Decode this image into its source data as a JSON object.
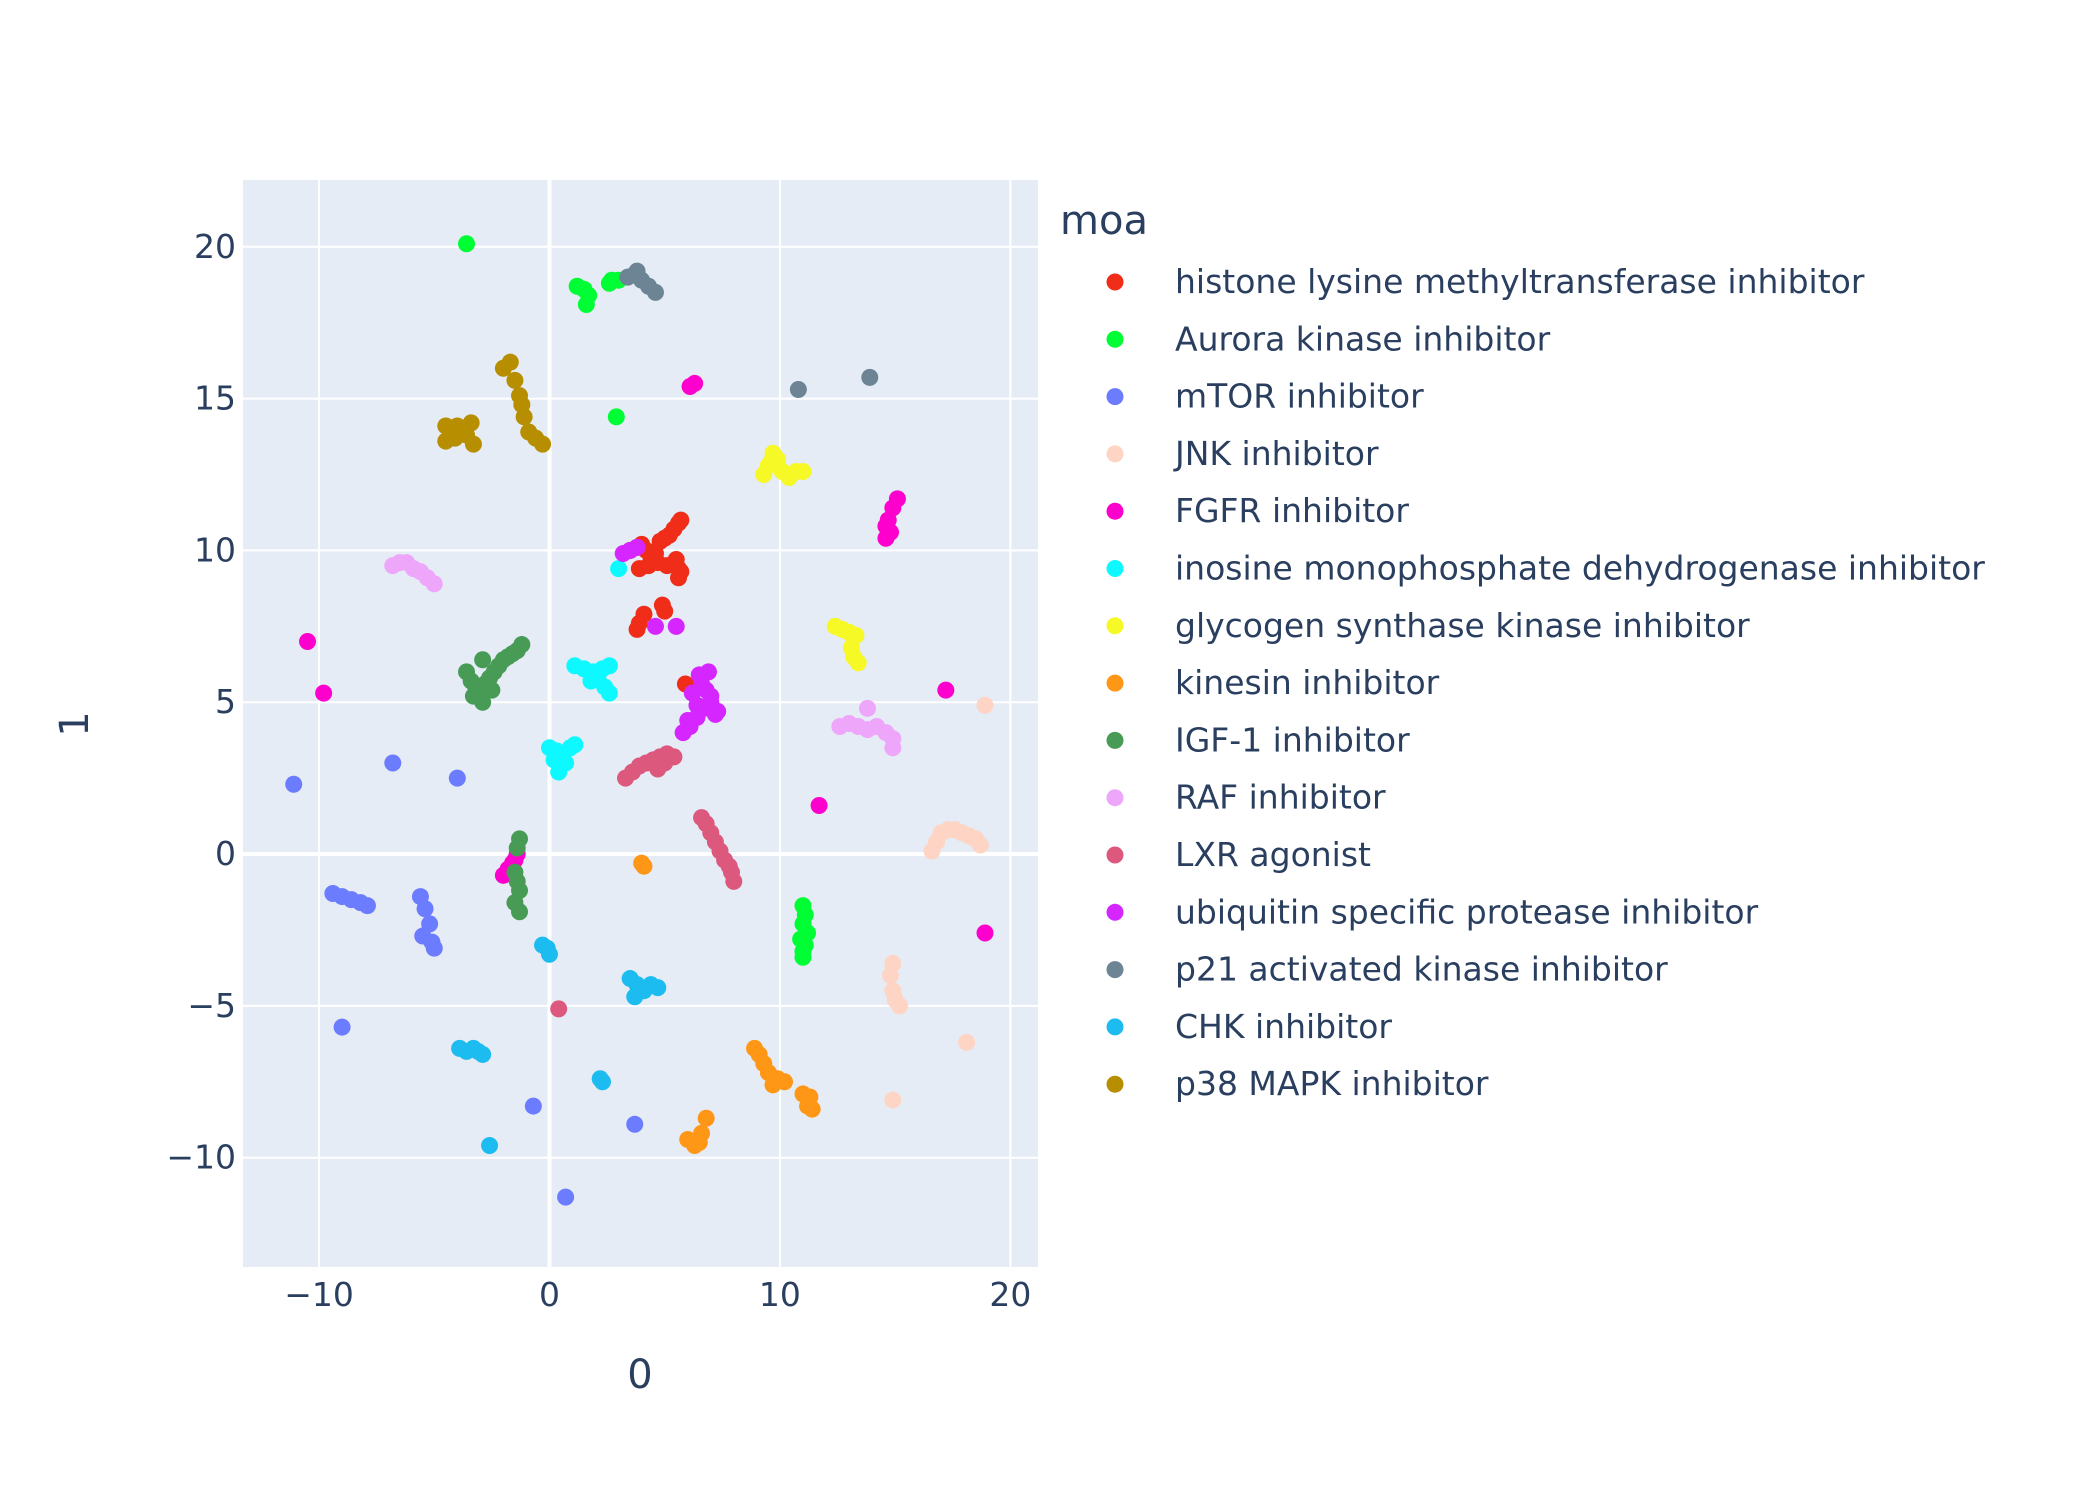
{
  "chart_data": {
    "type": "scatter",
    "title": "",
    "xlabel": "0",
    "ylabel": "1",
    "xlim": [
      -13.3,
      21.2
    ],
    "ylim": [
      -13.6,
      22.2
    ],
    "xticks": [
      -10,
      0,
      10,
      20
    ],
    "yticks": [
      -10,
      -5,
      0,
      5,
      10,
      15,
      20
    ],
    "xtick_labels": [
      "−10",
      "0",
      "10",
      "20"
    ],
    "ytick_labels": [
      "−10",
      "−5",
      "0",
      "5",
      "10",
      "15",
      "20"
    ],
    "grid": true,
    "plot_background": "#e5ecf6",
    "legend": {
      "title": "moa",
      "placement": "right"
    },
    "series": [
      {
        "name": "histone lysine methyltransferase inhibitor",
        "color": "#ef2d18",
        "x": [
          3.5,
          3.8,
          4.0,
          4.2,
          4.4,
          4.6,
          4.8,
          5.0,
          5.2,
          5.4,
          5.6,
          5.7,
          3.9,
          4.3,
          4.7,
          5.1,
          5.5,
          5.6,
          5.7,
          5.6,
          3.9,
          4.1,
          3.8,
          4.9,
          5.0,
          5.9
        ],
        "y": [
          10.0,
          10.1,
          10.2,
          10.0,
          9.8,
          9.9,
          10.3,
          10.4,
          10.5,
          10.7,
          10.9,
          11.0,
          9.4,
          9.5,
          9.6,
          9.5,
          9.7,
          9.4,
          9.3,
          9.1,
          7.6,
          7.9,
          7.4,
          8.2,
          8.0,
          5.6
        ]
      },
      {
        "name": "Aurora kinase inhibitor",
        "color": "#00fe35",
        "x": [
          -3.6,
          1.2,
          1.5,
          1.7,
          1.6,
          2.6,
          3.0,
          2.7,
          2.9,
          11.0,
          11.1,
          11.0,
          11.2,
          10.9,
          11.1,
          11.0,
          11.0
        ],
        "y": [
          20.1,
          18.7,
          18.6,
          18.4,
          18.1,
          18.8,
          18.9,
          18.9,
          14.4,
          -1.7,
          -2.0,
          -2.3,
          -2.6,
          -2.8,
          -3.0,
          -3.2,
          -3.4
        ]
      },
      {
        "name": "mTOR inhibitor",
        "color": "#6c7cfe",
        "x": [
          -11.1,
          -6.8,
          -4.0,
          -9.4,
          -9.0,
          -8.6,
          -8.2,
          -7.9,
          -5.6,
          -5.4,
          -5.2,
          -5.5,
          -5.1,
          -5.0,
          -9.0,
          -0.7,
          3.7,
          0.7
        ],
        "y": [
          2.3,
          3.0,
          2.5,
          -1.3,
          -1.4,
          -1.5,
          -1.6,
          -1.7,
          -1.4,
          -1.8,
          -2.3,
          -2.7,
          -2.9,
          -3.1,
          -5.7,
          -8.3,
          -8.9,
          -11.3
        ]
      },
      {
        "name": "JNK inhibitor",
        "color": "#fed4c4",
        "x": [
          18.9,
          16.6,
          16.8,
          17.0,
          17.3,
          17.6,
          17.9,
          18.2,
          18.5,
          18.7,
          14.9,
          14.8,
          14.9,
          15.0,
          15.2,
          18.1,
          14.9
        ],
        "y": [
          4.9,
          0.1,
          0.4,
          0.7,
          0.8,
          0.8,
          0.7,
          0.6,
          0.5,
          0.3,
          -3.6,
          -4.0,
          -4.5,
          -4.8,
          -5.0,
          -6.2,
          -8.1
        ]
      },
      {
        "name": "FGFR inhibitor",
        "color": "#fe00ce",
        "x": [
          6.1,
          6.3,
          14.6,
          14.7,
          14.9,
          15.1,
          14.8,
          14.6,
          -10.5,
          -9.8,
          17.2,
          11.7,
          18.9,
          -1.4,
          -1.6,
          -1.8,
          -2.0,
          -1.5
        ],
        "y": [
          15.4,
          15.5,
          10.8,
          11.0,
          11.4,
          11.7,
          10.6,
          10.4,
          7.0,
          5.3,
          5.4,
          1.6,
          -2.6,
          0.0,
          -0.3,
          -0.5,
          -0.7,
          -0.2
        ]
      },
      {
        "name": "inosine monophosphate dehydrogenase inhibitor",
        "color": "#0df9ff",
        "x": [
          3.0,
          1.1,
          1.5,
          1.9,
          2.3,
          2.6,
          2.1,
          2.4,
          2.6,
          1.8,
          0.0,
          0.3,
          0.6,
          0.9,
          1.1,
          0.4,
          0.2,
          0.7
        ],
        "y": [
          9.4,
          6.2,
          6.1,
          6.0,
          6.1,
          6.2,
          5.8,
          5.5,
          5.3,
          5.7,
          3.5,
          3.4,
          3.3,
          3.5,
          3.6,
          2.7,
          3.1,
          3.0
        ]
      },
      {
        "name": "glycogen synthase kinase inhibitor",
        "color": "#f6f926",
        "x": [
          9.3,
          9.5,
          9.7,
          9.9,
          10.1,
          10.4,
          10.7,
          11.0,
          9.6,
          12.4,
          12.7,
          13.0,
          13.3,
          13.1,
          13.2,
          13.4
        ],
        "y": [
          12.5,
          12.8,
          13.2,
          13.0,
          12.6,
          12.4,
          12.6,
          12.6,
          12.9,
          7.5,
          7.4,
          7.3,
          7.2,
          6.8,
          6.5,
          6.3
        ]
      },
      {
        "name": "kinesin inhibitor",
        "color": "#fe9616",
        "x": [
          4.0,
          4.1,
          8.9,
          9.1,
          9.3,
          9.5,
          9.7,
          9.9,
          10.2,
          11.0,
          11.3,
          11.2,
          11.4,
          6.0,
          6.3,
          6.6,
          6.8,
          6.5
        ],
        "y": [
          -0.3,
          -0.4,
          -6.4,
          -6.6,
          -6.9,
          -7.2,
          -7.6,
          -7.4,
          -7.5,
          -7.9,
          -8.0,
          -8.3,
          -8.4,
          -9.4,
          -9.6,
          -9.2,
          -8.7,
          -9.5
        ]
      },
      {
        "name": "IGF-1 inhibitor",
        "color": "#479b55",
        "x": [
          -3.6,
          -3.4,
          -3.2,
          -3.0,
          -2.8,
          -2.6,
          -2.4,
          -2.2,
          -2.0,
          -1.8,
          -1.6,
          -1.4,
          -1.2,
          -3.3,
          -2.9,
          -2.5,
          -2.9,
          -1.3,
          -1.4,
          -1.5,
          -1.4,
          -1.3,
          -1.5,
          -1.3
        ],
        "y": [
          6.0,
          5.7,
          5.5,
          5.3,
          5.6,
          5.8,
          6.0,
          6.2,
          6.4,
          6.5,
          6.6,
          6.7,
          6.9,
          5.2,
          5.0,
          5.4,
          6.4,
          0.5,
          0.2,
          -0.6,
          -0.9,
          -1.2,
          -1.6,
          -1.9
        ]
      },
      {
        "name": "RAF inhibitor",
        "color": "#eea6fb",
        "x": [
          -6.8,
          -6.5,
          -6.2,
          -5.9,
          -5.6,
          -5.3,
          -5.0,
          12.6,
          13.0,
          13.4,
          13.8,
          14.2,
          14.6,
          14.9,
          14.9,
          13.8
        ],
        "y": [
          9.5,
          9.6,
          9.6,
          9.4,
          9.3,
          9.1,
          8.9,
          4.2,
          4.3,
          4.2,
          4.1,
          4.2,
          4.0,
          3.8,
          3.5,
          4.8
        ]
      },
      {
        "name": "LXR agonist",
        "color": "#dc587d",
        "x": [
          3.3,
          3.6,
          3.9,
          4.2,
          4.5,
          4.8,
          5.1,
          5.4,
          4.7,
          5.0,
          6.6,
          6.8,
          7.0,
          7.2,
          7.4,
          7.6,
          7.8,
          7.9,
          8.0,
          0.4
        ],
        "y": [
          2.5,
          2.7,
          2.9,
          3.0,
          3.1,
          3.2,
          3.3,
          3.2,
          2.8,
          3.0,
          1.2,
          1.0,
          0.7,
          0.4,
          0.1,
          -0.2,
          -0.4,
          -0.6,
          -0.9,
          -5.1
        ]
      },
      {
        "name": "ubiquitin specific protease inhibitor",
        "color": "#d626ff",
        "x": [
          3.2,
          3.5,
          3.8,
          4.6,
          5.5,
          5.8,
          6.1,
          6.4,
          6.7,
          7.0,
          7.3,
          6.2,
          6.6,
          7.0,
          6.5,
          6.9,
          7.2,
          6.0,
          6.8,
          6.4
        ],
        "y": [
          9.9,
          10.0,
          10.1,
          7.5,
          7.5,
          4.0,
          4.2,
          4.5,
          4.8,
          5.0,
          4.7,
          5.3,
          5.6,
          5.2,
          5.9,
          6.0,
          4.6,
          4.4,
          5.4,
          4.9
        ]
      },
      {
        "name": "p21 activated kinase inhibitor",
        "color": "#6c8494",
        "x": [
          3.4,
          3.7,
          4.0,
          4.3,
          4.6,
          3.8,
          10.8,
          13.9
        ],
        "y": [
          19.0,
          19.1,
          18.9,
          18.7,
          18.5,
          19.2,
          15.3,
          15.7
        ]
      },
      {
        "name": "CHK inhibitor",
        "color": "#1cbbf0",
        "x": [
          3.5,
          3.8,
          4.1,
          4.4,
          4.7,
          3.7,
          -0.3,
          -0.1,
          0.0,
          -3.9,
          -3.6,
          -3.3,
          -3.1,
          -2.9,
          2.2,
          2.3,
          -2.6
        ],
        "y": [
          -4.1,
          -4.3,
          -4.5,
          -4.3,
          -4.4,
          -4.7,
          -3.0,
          -3.1,
          -3.3,
          -6.4,
          -6.5,
          -6.4,
          -6.5,
          -6.6,
          -7.4,
          -7.5,
          -9.6
        ]
      },
      {
        "name": "p38 MAPK inhibitor",
        "color": "#b68e00",
        "x": [
          -2.0,
          -1.7,
          -1.5,
          -1.3,
          -1.2,
          -1.1,
          -0.9,
          -0.6,
          -0.3,
          -4.5,
          -4.3,
          -4.0,
          -3.7,
          -3.4,
          -3.6,
          -3.3,
          -4.1,
          -4.5
        ],
        "y": [
          16.0,
          16.2,
          15.6,
          15.1,
          14.8,
          14.4,
          13.9,
          13.7,
          13.5,
          13.6,
          14.0,
          14.1,
          14.0,
          14.2,
          13.8,
          13.5,
          13.7,
          14.1
        ]
      }
    ]
  }
}
